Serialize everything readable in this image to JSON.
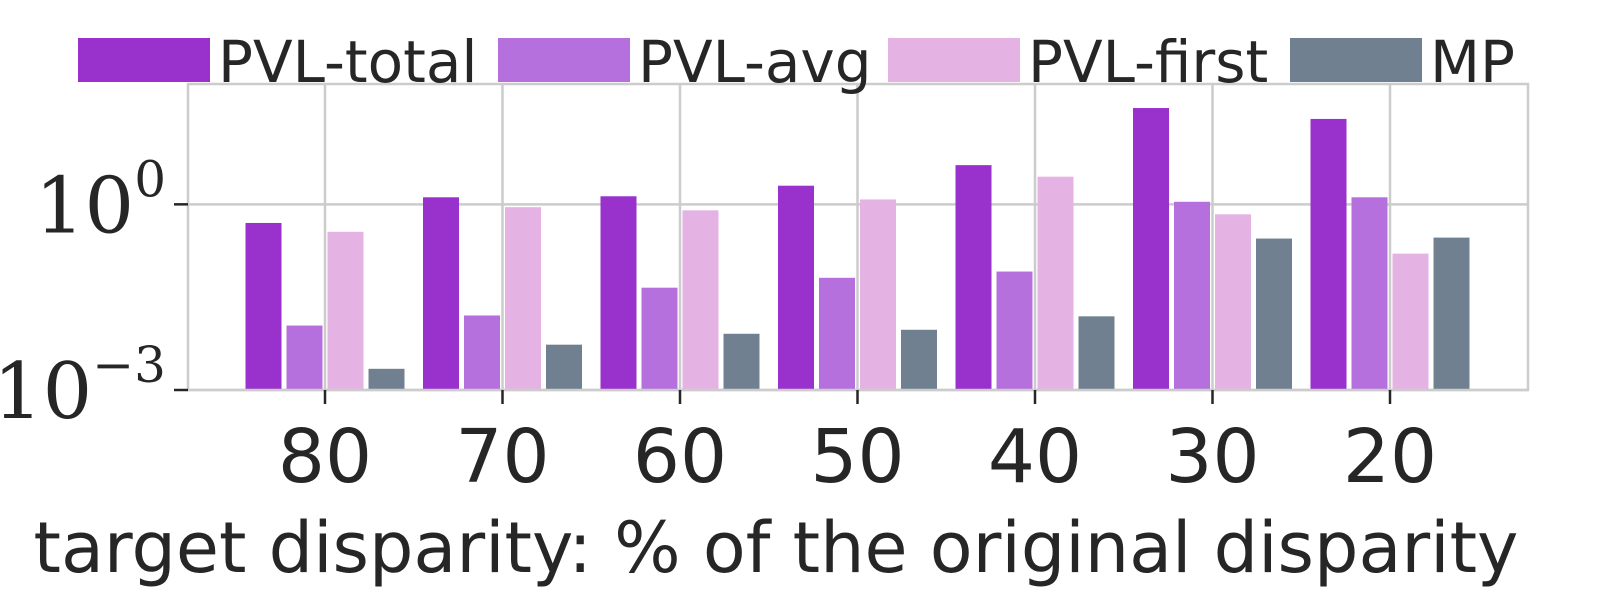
{
  "chart_data": {
    "type": "bar",
    "categories": [
      "80",
      "70",
      "60",
      "50",
      "40",
      "30",
      "20"
    ],
    "series": [
      {
        "name": "PVL-total",
        "color": "#9932CC",
        "values": [
          0.5,
          1.3,
          1.35,
          2.0,
          4.3,
          36.0,
          24.0
        ]
      },
      {
        "name": "PVL-avg",
        "color": "#B570DE",
        "values": [
          0.011,
          0.016,
          0.045,
          0.065,
          0.082,
          1.1,
          1.3
        ]
      },
      {
        "name": "PVL-first",
        "color": "#E4B3E3",
        "values": [
          0.36,
          0.9,
          0.8,
          1.2,
          2.8,
          0.69,
          0.16
        ]
      },
      {
        "name": "MP",
        "color": "#708090",
        "values": [
          0.0022,
          0.0054,
          0.0081,
          0.0094,
          0.0155,
          0.28,
          0.29
        ]
      }
    ],
    "xlabel": "target disparity: % of the original disparity",
    "ylabel": "",
    "yscale": "log",
    "ylim": [
      0.001,
      88
    ],
    "yticks": [
      {
        "base": "10",
        "exp": "0",
        "value": 1
      },
      {
        "base": "10",
        "exp": "−3",
        "value": 0.001
      }
    ],
    "grid": true,
    "legend_position": "top"
  }
}
